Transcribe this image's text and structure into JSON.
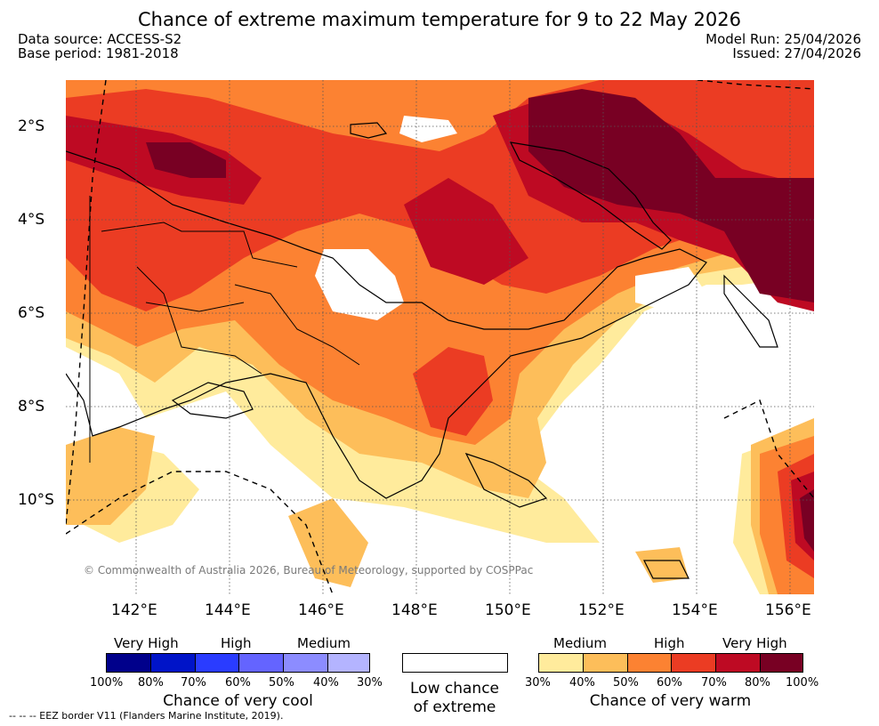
{
  "title": "Chance of extreme maximum temperature for 9 to 22 May 2026",
  "data_source": "Data source: ACCESS-S2",
  "base_period": "Base period: 1981-2018",
  "model_run": "Model Run: 25/04/2026",
  "issued": "Issued: 27/04/2026",
  "lat_labels": [
    "2°S",
    "4°S",
    "6°S",
    "8°S",
    "10°S"
  ],
  "lon_labels": [
    "142°E",
    "144°E",
    "146°E",
    "148°E",
    "150°E",
    "152°E",
    "154°E",
    "156°E"
  ],
  "copyright": "© Commonwealth of Australia 2026, Bureau of Meteorology, supported by COSPPac",
  "cool_legend": {
    "headings": [
      "Very High",
      "High",
      "Medium"
    ],
    "colors": [
      "#00008b",
      "#0014c8",
      "#2a3cff",
      "#6464ff",
      "#8c8cff",
      "#b4b4ff"
    ],
    "ticks": [
      "100%",
      "80%",
      "70%",
      "60%",
      "50%",
      "40%",
      "30%"
    ],
    "caption": "Chance of very cool"
  },
  "neutral_legend": {
    "caption_line1": "Low chance",
    "caption_line2": "of extreme"
  },
  "warm_legend": {
    "headings": [
      "Medium",
      "High",
      "Very High"
    ],
    "colors": [
      "#ffeb9c",
      "#fdbe5a",
      "#fc8232",
      "#eb3c23",
      "#be0a23",
      "#780023"
    ],
    "ticks": [
      "30%",
      "40%",
      "50%",
      "60%",
      "70%",
      "80%",
      "100%"
    ],
    "caption": "Chance of very warm"
  },
  "footnote": "--  --  -- EEZ border V11 (Flanders Marine Institute, 2019)."
}
